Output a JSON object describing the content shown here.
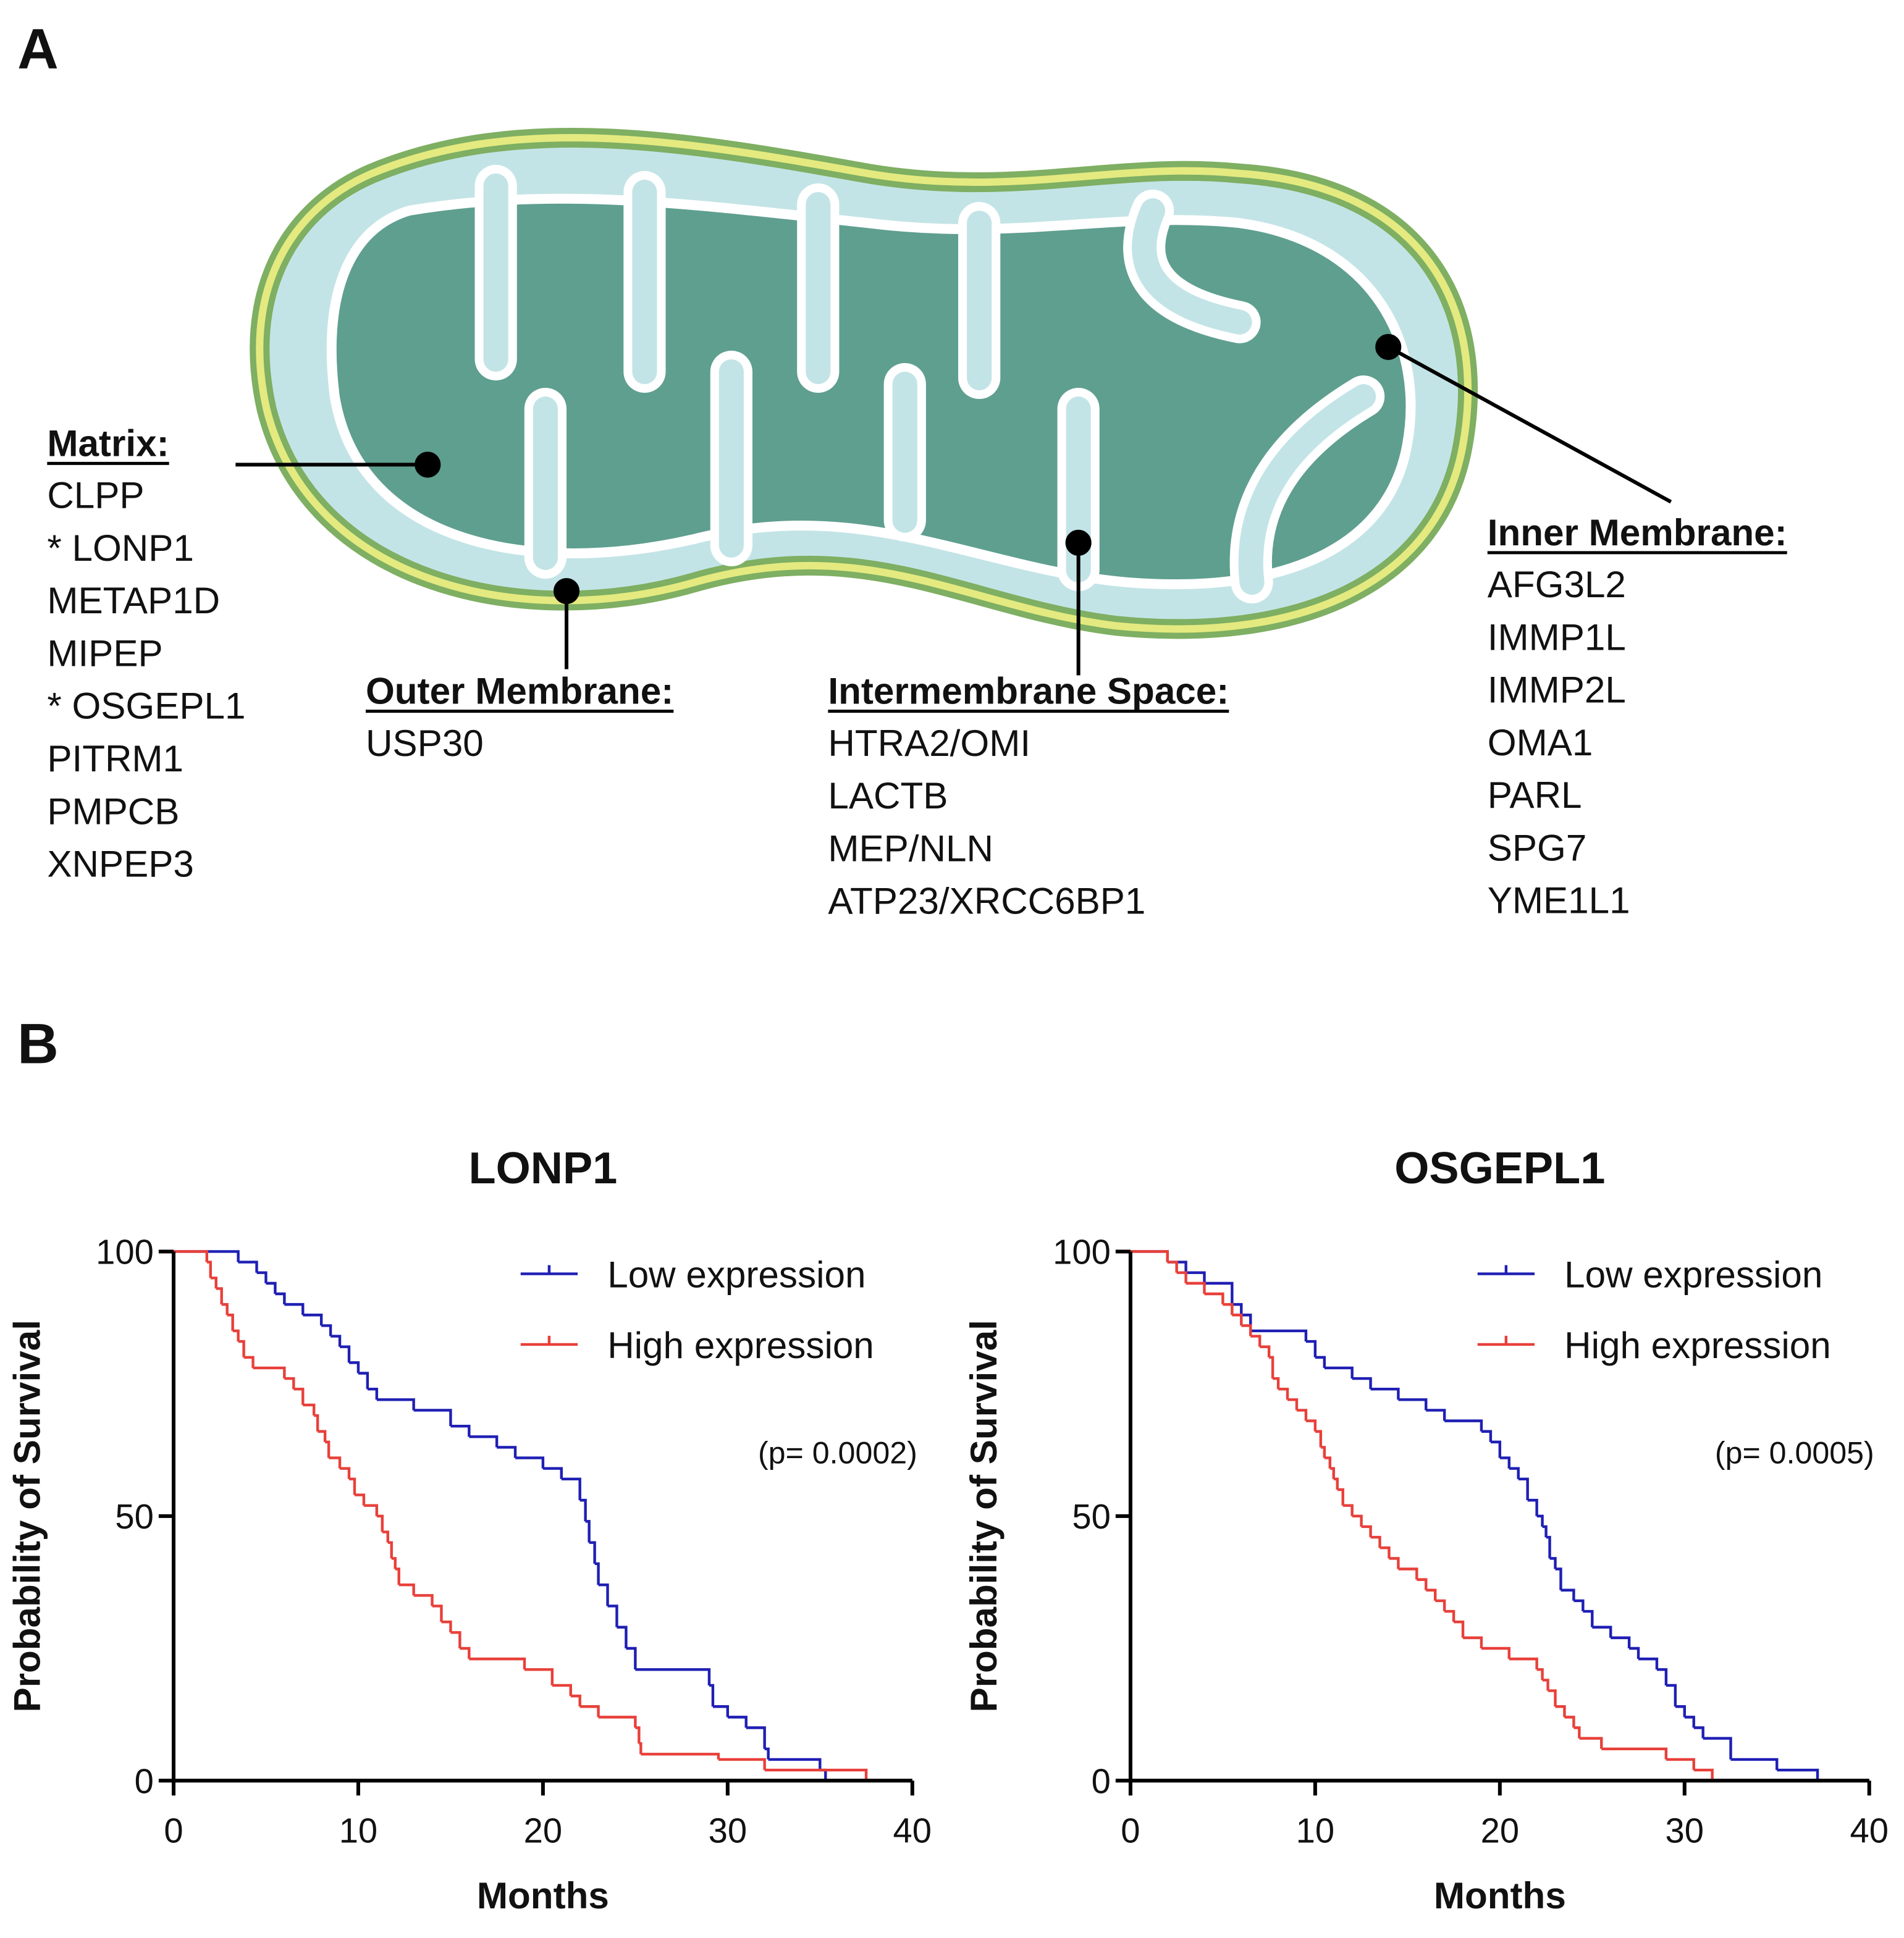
{
  "panel_a": {
    "label": "A",
    "compartments": [
      {
        "title": "Matrix:",
        "items": [
          "CLPP",
          "* LONP1",
          "METAP1D",
          "MIPEP",
          "* OSGEPL1",
          "PITRM1",
          "PMPCB",
          "XNPEP3"
        ]
      },
      {
        "title": "Outer Membrane:",
        "items": [
          "USP30"
        ]
      },
      {
        "title": "Intermembrane Space:",
        "items": [
          "HTRA2/OMI",
          "LACTB",
          "MEP/NLN",
          "ATP23/XRCC6BP1"
        ]
      },
      {
        "title": "Inner Membrane:",
        "items": [
          "AFG3L2",
          "IMMP1L",
          "IMMP2L",
          "OMA1",
          "PARL",
          "SPG7",
          "YME1L1"
        ]
      }
    ]
  },
  "panel_b_label": "B",
  "chart_data": [
    {
      "type": "step",
      "title": "LONP1",
      "x_label": "Months",
      "y_label": "Probability of Survival",
      "xlim": [
        0,
        40
      ],
      "xticks": [
        0,
        10,
        20,
        30,
        40
      ],
      "ylim": [
        0,
        100
      ],
      "yticks": [
        0,
        50,
        100
      ],
      "annotation": "(p= 0.0002)",
      "legend": "upper right",
      "series": [
        {
          "name": "Low expression",
          "color": "#1f1fb4",
          "x": [
            0,
            3.5,
            4.5,
            5,
            5.5,
            6,
            7,
            8,
            8.5,
            9,
            9.5,
            10,
            10.5,
            11,
            13,
            15,
            16,
            17.5,
            18.5,
            20,
            21,
            22,
            22.3,
            22.5,
            22.8,
            23,
            23.5,
            24,
            24.5,
            25,
            29,
            29.2,
            30,
            31,
            32,
            32.2,
            35,
            35.3
          ],
          "values": [
            100,
            98,
            96,
            94,
            92,
            90,
            88,
            86,
            84,
            82,
            79,
            77,
            74,
            72,
            70,
            67,
            65,
            63,
            61,
            59,
            57,
            53,
            49,
            45,
            41,
            37,
            33,
            29,
            25,
            21,
            18,
            14,
            12,
            10,
            6,
            4,
            2,
            0
          ]
        },
        {
          "name": "High expression",
          "color": "#e8403a",
          "x": [
            0,
            1.8,
            2,
            2.3,
            2.6,
            2.9,
            3.2,
            3.5,
            3.8,
            4.3,
            6,
            6.5,
            7,
            7.6,
            7.8,
            8.2,
            8.4,
            9,
            9.5,
            9.8,
            10.3,
            11,
            11.3,
            11.6,
            11.8,
            12,
            12.2,
            13,
            14,
            14.5,
            15,
            15.5,
            16,
            19,
            20.5,
            21.5,
            22,
            23,
            25,
            25.2,
            25.3,
            29.5,
            32,
            37.5
          ],
          "values": [
            100,
            98,
            95,
            93,
            90,
            88,
            85,
            83,
            80,
            78,
            76,
            74,
            71,
            69,
            66,
            64,
            61,
            59,
            57,
            54,
            52,
            50,
            47,
            45,
            42,
            40,
            37,
            35,
            33,
            30,
            28,
            25,
            23,
            21,
            18,
            16,
            14,
            12,
            10,
            7,
            5,
            4,
            2,
            0
          ]
        }
      ]
    },
    {
      "type": "step",
      "title": "OSGEPL1",
      "x_label": "Months",
      "y_label": "Probability of Survival",
      "xlim": [
        0,
        40
      ],
      "xticks": [
        0,
        10,
        20,
        30,
        40
      ],
      "ylim": [
        0,
        100
      ],
      "yticks": [
        0,
        50,
        100
      ],
      "annotation": "(p= 0.0005)",
      "legend": "upper right",
      "series": [
        {
          "name": "Low expression",
          "color": "#1f1fb4",
          "x": [
            0,
            2,
            3,
            4,
            5.5,
            6,
            6.5,
            9.5,
            10,
            10.5,
            12,
            13,
            14.5,
            16,
            17,
            19,
            19.5,
            20,
            20.5,
            21,
            21.5,
            22,
            22.3,
            22.5,
            22.7,
            23,
            23.3,
            24,
            24.5,
            25,
            26,
            27,
            27.5,
            28.5,
            29,
            29.5,
            30,
            30.5,
            31,
            32.5,
            35,
            37.2
          ],
          "values": [
            100,
            98,
            96,
            94,
            90,
            88,
            85,
            83,
            80,
            78,
            76,
            74,
            72,
            70,
            68,
            66,
            64,
            61,
            59,
            57,
            53,
            50,
            48,
            46,
            42,
            40,
            36,
            34,
            32,
            29,
            27,
            25,
            23,
            21,
            18,
            14,
            12,
            10,
            8,
            4,
            2,
            0
          ]
        },
        {
          "name": "High expression",
          "color": "#e8403a",
          "x": [
            0,
            2,
            2.5,
            3,
            4,
            5,
            5.5,
            6,
            6.5,
            7,
            7.5,
            7.7,
            8,
            8.5,
            9,
            9.5,
            10,
            10.3,
            10.5,
            10.8,
            11,
            11.2,
            11.5,
            12,
            12.5,
            13,
            13.5,
            14,
            14.5,
            15.5,
            16,
            16.5,
            17,
            17.5,
            18,
            19,
            20.5,
            22,
            22.3,
            22.6,
            23,
            23.5,
            24,
            24.3,
            25.5,
            29,
            30.5,
            31.5
          ],
          "values": [
            100,
            98,
            96,
            94,
            92,
            90,
            88,
            86,
            84,
            82,
            80,
            76,
            74,
            72,
            70,
            68,
            66,
            63,
            61,
            59,
            57,
            55,
            52,
            50,
            48,
            46,
            44,
            42,
            40,
            38,
            36,
            34,
            32,
            30,
            27,
            25,
            23,
            21,
            19,
            17,
            14,
            12,
            10,
            8,
            6,
            4,
            2,
            0
          ]
        }
      ]
    }
  ]
}
